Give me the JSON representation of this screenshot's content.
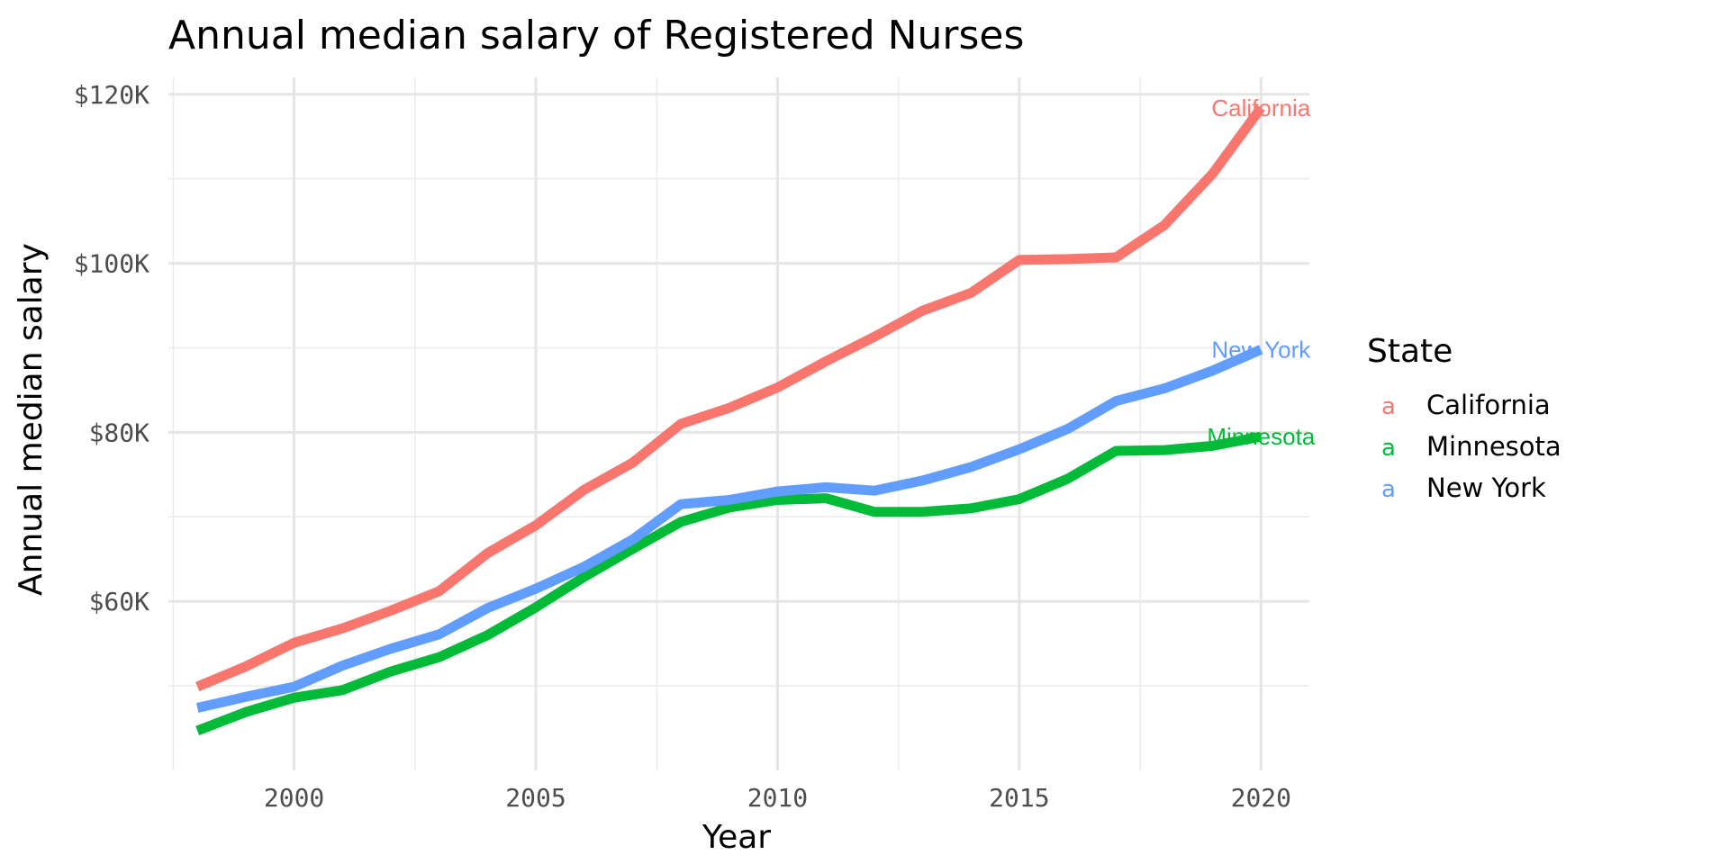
{
  "chart_data": {
    "type": "line",
    "title": "Annual median salary of Registered Nurses",
    "xlabel": "Year",
    "ylabel": "Annual median salary",
    "xlim": [
      1997.4,
      2021.0
    ],
    "ylim": [
      40000,
      122000
    ],
    "x_ticks": [
      2000,
      2005,
      2010,
      2015,
      2020
    ],
    "x_tick_labels": [
      "2000",
      "2005",
      "2010",
      "2015",
      "2020"
    ],
    "y_ticks": [
      60000,
      80000,
      100000,
      120000
    ],
    "y_tick_labels": [
      "$60K",
      "$80K",
      "$100K",
      "$120K"
    ],
    "grid": true,
    "legend": {
      "title": "State",
      "position": "right",
      "key_glyph": "a"
    },
    "x": [
      1998,
      1999,
      2000,
      2001,
      2002,
      2003,
      2004,
      2005,
      2006,
      2007,
      2008,
      2009,
      2010,
      2011,
      2012,
      2013,
      2014,
      2015,
      2016,
      2017,
      2018,
      2019,
      2020
    ],
    "series": [
      {
        "name": "California",
        "color": "#F8766D",
        "values": [
          49900,
          52300,
          55100,
          56800,
          58900,
          61200,
          65700,
          69000,
          73200,
          76400,
          81000,
          82900,
          85300,
          88400,
          91300,
          94400,
          96500,
          100400,
          100500,
          100700,
          104500,
          110600,
          118400
        ]
      },
      {
        "name": "Minnesota",
        "color": "#00BA38",
        "values": [
          44700,
          46900,
          48600,
          49500,
          51700,
          53400,
          56000,
          59300,
          62900,
          66200,
          69400,
          71100,
          72000,
          72200,
          70600,
          70600,
          71000,
          72100,
          74500,
          77800,
          77900,
          78400,
          79500
        ]
      },
      {
        "name": "New York",
        "color": "#619CFF",
        "values": [
          47400,
          48700,
          49900,
          52400,
          54400,
          56100,
          59200,
          61500,
          64100,
          67300,
          71500,
          72000,
          73000,
          73500,
          73100,
          74300,
          75900,
          78000,
          80400,
          83700,
          85200,
          87300,
          89800
        ]
      }
    ]
  }
}
